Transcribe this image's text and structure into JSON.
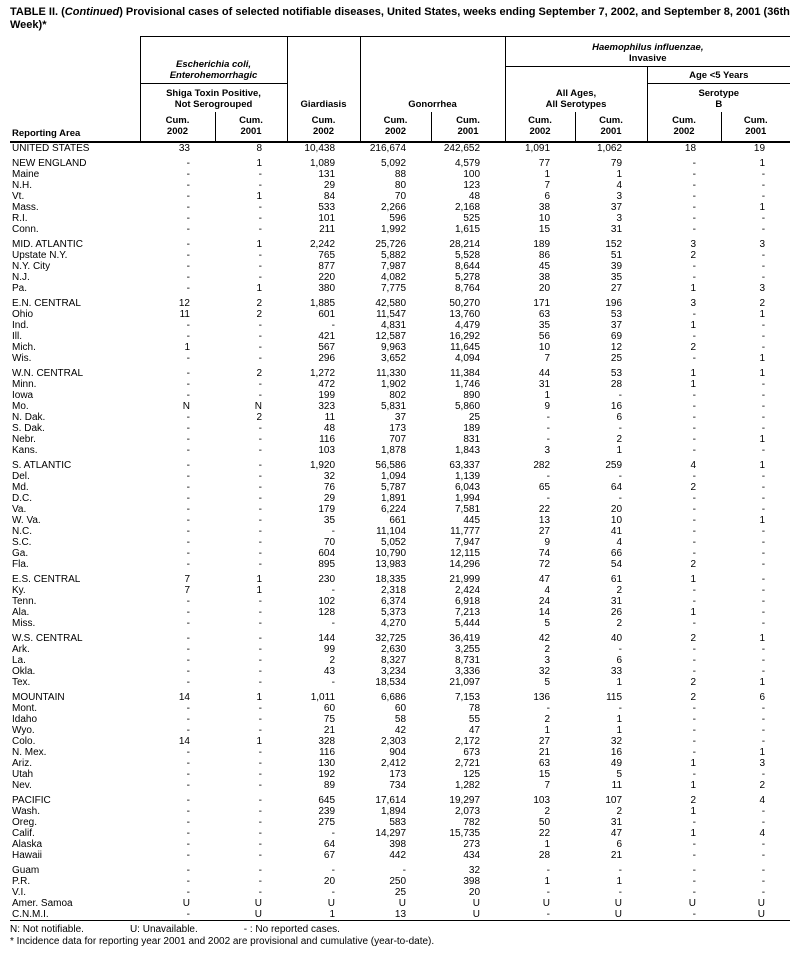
{
  "title": {
    "prefix": "TABLE II. (",
    "continued": "Continued",
    "suffix": ") Provisional cases of selected notifiable diseases, United States, weeks ending September 7, 2002, and September 8, 2001 (36th Week)*"
  },
  "header": {
    "reporting_area": "Reporting Area",
    "ecoli_line1": "Escherichia coli,",
    "ecoli_line2": "Enterohemorrhagic",
    "shiga_line1": "Shiga Toxin Positive,",
    "shiga_line2": "Not Serogrouped",
    "giardiasis": "Giardiasis",
    "gonorrhea": "Gonorrhea",
    "hib_line1": "Haemophilus influenzae,",
    "hib_line2": "Invasive",
    "all_ages_line1": "All Ages,",
    "all_ages_line2": "All Serotypes",
    "age5": "Age <5 Years",
    "serotype_line1": "Serotype",
    "serotype_line2": "B",
    "cum_label": "Cum.",
    "col_years": [
      "2002",
      "2001",
      "2002",
      "2002",
      "2001",
      "2002",
      "2001",
      "2002",
      "2001"
    ]
  },
  "groups": [
    {
      "rows": [
        {
          "area": "UNITED STATES",
          "values": [
            "33",
            "8",
            "10,438",
            "216,674",
            "242,652",
            "1,091",
            "1,062",
            "18",
            "19"
          ]
        }
      ]
    },
    {
      "rows": [
        {
          "area": "NEW ENGLAND",
          "values": [
            "-",
            "1",
            "1,089",
            "5,092",
            "4,579",
            "77",
            "79",
            "-",
            "1"
          ]
        },
        {
          "area": "Maine",
          "values": [
            "-",
            "-",
            "131",
            "88",
            "100",
            "1",
            "1",
            "-",
            "-"
          ]
        },
        {
          "area": "N.H.",
          "values": [
            "-",
            "-",
            "29",
            "80",
            "123",
            "7",
            "4",
            "-",
            "-"
          ]
        },
        {
          "area": "Vt.",
          "values": [
            "-",
            "1",
            "84",
            "70",
            "48",
            "6",
            "3",
            "-",
            "-"
          ]
        },
        {
          "area": "Mass.",
          "values": [
            "-",
            "-",
            "533",
            "2,266",
            "2,168",
            "38",
            "37",
            "-",
            "1"
          ]
        },
        {
          "area": "R.I.",
          "values": [
            "-",
            "-",
            "101",
            "596",
            "525",
            "10",
            "3",
            "-",
            "-"
          ]
        },
        {
          "area": "Conn.",
          "values": [
            "-",
            "-",
            "211",
            "1,992",
            "1,615",
            "15",
            "31",
            "-",
            "-"
          ]
        }
      ]
    },
    {
      "rows": [
        {
          "area": "MID. ATLANTIC",
          "values": [
            "-",
            "1",
            "2,242",
            "25,726",
            "28,214",
            "189",
            "152",
            "3",
            "3"
          ]
        },
        {
          "area": "Upstate N.Y.",
          "values": [
            "-",
            "-",
            "765",
            "5,882",
            "5,528",
            "86",
            "51",
            "2",
            "-"
          ]
        },
        {
          "area": "N.Y. City",
          "values": [
            "-",
            "-",
            "877",
            "7,987",
            "8,644",
            "45",
            "39",
            "-",
            "-"
          ]
        },
        {
          "area": "N.J.",
          "values": [
            "-",
            "-",
            "220",
            "4,082",
            "5,278",
            "38",
            "35",
            "-",
            "-"
          ]
        },
        {
          "area": "Pa.",
          "values": [
            "-",
            "1",
            "380",
            "7,775",
            "8,764",
            "20",
            "27",
            "1",
            "3"
          ]
        }
      ]
    },
    {
      "rows": [
        {
          "area": "E.N. CENTRAL",
          "values": [
            "12",
            "2",
            "1,885",
            "42,580",
            "50,270",
            "171",
            "196",
            "3",
            "2"
          ]
        },
        {
          "area": "Ohio",
          "values": [
            "11",
            "2",
            "601",
            "11,547",
            "13,760",
            "63",
            "53",
            "-",
            "1"
          ]
        },
        {
          "area": "Ind.",
          "values": [
            "-",
            "-",
            "-",
            "4,831",
            "4,479",
            "35",
            "37",
            "1",
            "-"
          ]
        },
        {
          "area": "Ill.",
          "values": [
            "-",
            "-",
            "421",
            "12,587",
            "16,292",
            "56",
            "69",
            "-",
            "-"
          ]
        },
        {
          "area": "Mich.",
          "values": [
            "1",
            "-",
            "567",
            "9,963",
            "11,645",
            "10",
            "12",
            "2",
            "-"
          ]
        },
        {
          "area": "Wis.",
          "values": [
            "-",
            "-",
            "296",
            "3,652",
            "4,094",
            "7",
            "25",
            "-",
            "1"
          ]
        }
      ]
    },
    {
      "rows": [
        {
          "area": "W.N. CENTRAL",
          "values": [
            "-",
            "2",
            "1,272",
            "11,330",
            "11,384",
            "44",
            "53",
            "1",
            "1"
          ]
        },
        {
          "area": "Minn.",
          "values": [
            "-",
            "-",
            "472",
            "1,902",
            "1,746",
            "31",
            "28",
            "1",
            "-"
          ]
        },
        {
          "area": "Iowa",
          "values": [
            "-",
            "-",
            "199",
            "802",
            "890",
            "1",
            "-",
            "-",
            "-"
          ]
        },
        {
          "area": "Mo.",
          "values": [
            "N",
            "N",
            "323",
            "5,831",
            "5,860",
            "9",
            "16",
            "-",
            "-"
          ]
        },
        {
          "area": "N. Dak.",
          "values": [
            "-",
            "2",
            "11",
            "37",
            "25",
            "-",
            "6",
            "-",
            "-"
          ]
        },
        {
          "area": "S. Dak.",
          "values": [
            "-",
            "-",
            "48",
            "173",
            "189",
            "-",
            "-",
            "-",
            "-"
          ]
        },
        {
          "area": "Nebr.",
          "values": [
            "-",
            "-",
            "116",
            "707",
            "831",
            "-",
            "2",
            "-",
            "1"
          ]
        },
        {
          "area": "Kans.",
          "values": [
            "-",
            "-",
            "103",
            "1,878",
            "1,843",
            "3",
            "1",
            "-",
            "-"
          ]
        }
      ]
    },
    {
      "rows": [
        {
          "area": "S. ATLANTIC",
          "values": [
            "-",
            "-",
            "1,920",
            "56,586",
            "63,337",
            "282",
            "259",
            "4",
            "1"
          ]
        },
        {
          "area": "Del.",
          "values": [
            "-",
            "-",
            "32",
            "1,094",
            "1,139",
            "-",
            "-",
            "-",
            "-"
          ]
        },
        {
          "area": "Md.",
          "values": [
            "-",
            "-",
            "76",
            "5,787",
            "6,043",
            "65",
            "64",
            "2",
            "-"
          ]
        },
        {
          "area": "D.C.",
          "values": [
            "-",
            "-",
            "29",
            "1,891",
            "1,994",
            "-",
            "-",
            "-",
            "-"
          ]
        },
        {
          "area": "Va.",
          "values": [
            "-",
            "-",
            "179",
            "6,224",
            "7,581",
            "22",
            "20",
            "-",
            "-"
          ]
        },
        {
          "area": "W. Va.",
          "values": [
            "-",
            "-",
            "35",
            "661",
            "445",
            "13",
            "10",
            "-",
            "1"
          ]
        },
        {
          "area": "N.C.",
          "values": [
            "-",
            "-",
            "-",
            "11,104",
            "11,777",
            "27",
            "41",
            "-",
            "-"
          ]
        },
        {
          "area": "S.C.",
          "values": [
            "-",
            "-",
            "70",
            "5,052",
            "7,947",
            "9",
            "4",
            "-",
            "-"
          ]
        },
        {
          "area": "Ga.",
          "values": [
            "-",
            "-",
            "604",
            "10,790",
            "12,115",
            "74",
            "66",
            "-",
            "-"
          ]
        },
        {
          "area": "Fla.",
          "values": [
            "-",
            "-",
            "895",
            "13,983",
            "14,296",
            "72",
            "54",
            "2",
            "-"
          ]
        }
      ]
    },
    {
      "rows": [
        {
          "area": "E.S. CENTRAL",
          "values": [
            "7",
            "1",
            "230",
            "18,335",
            "21,999",
            "47",
            "61",
            "1",
            "-"
          ]
        },
        {
          "area": "Ky.",
          "values": [
            "7",
            "1",
            "-",
            "2,318",
            "2,424",
            "4",
            "2",
            "-",
            "-"
          ]
        },
        {
          "area": "Tenn.",
          "values": [
            "-",
            "-",
            "102",
            "6,374",
            "6,918",
            "24",
            "31",
            "-",
            "-"
          ]
        },
        {
          "area": "Ala.",
          "values": [
            "-",
            "-",
            "128",
            "5,373",
            "7,213",
            "14",
            "26",
            "1",
            "-"
          ]
        },
        {
          "area": "Miss.",
          "values": [
            "-",
            "-",
            "-",
            "4,270",
            "5,444",
            "5",
            "2",
            "-",
            "-"
          ]
        }
      ]
    },
    {
      "rows": [
        {
          "area": "W.S. CENTRAL",
          "values": [
            "-",
            "-",
            "144",
            "32,725",
            "36,419",
            "42",
            "40",
            "2",
            "1"
          ]
        },
        {
          "area": "Ark.",
          "values": [
            "-",
            "-",
            "99",
            "2,630",
            "3,255",
            "2",
            "-",
            "-",
            "-"
          ]
        },
        {
          "area": "La.",
          "values": [
            "-",
            "-",
            "2",
            "8,327",
            "8,731",
            "3",
            "6",
            "-",
            "-"
          ]
        },
        {
          "area": "Okla.",
          "values": [
            "-",
            "-",
            "43",
            "3,234",
            "3,336",
            "32",
            "33",
            "-",
            "-"
          ]
        },
        {
          "area": "Tex.",
          "values": [
            "-",
            "-",
            "-",
            "18,534",
            "21,097",
            "5",
            "1",
            "2",
            "1"
          ]
        }
      ]
    },
    {
      "rows": [
        {
          "area": "MOUNTAIN",
          "values": [
            "14",
            "1",
            "1,011",
            "6,686",
            "7,153",
            "136",
            "115",
            "2",
            "6"
          ]
        },
        {
          "area": "Mont.",
          "values": [
            "-",
            "-",
            "60",
            "60",
            "78",
            "-",
            "-",
            "-",
            "-"
          ]
        },
        {
          "area": "Idaho",
          "values": [
            "-",
            "-",
            "75",
            "58",
            "55",
            "2",
            "1",
            "-",
            "-"
          ]
        },
        {
          "area": "Wyo.",
          "values": [
            "-",
            "-",
            "21",
            "42",
            "47",
            "1",
            "1",
            "-",
            "-"
          ]
        },
        {
          "area": "Colo.",
          "values": [
            "14",
            "1",
            "328",
            "2,303",
            "2,172",
            "27",
            "32",
            "-",
            "-"
          ]
        },
        {
          "area": "N. Mex.",
          "values": [
            "-",
            "-",
            "116",
            "904",
            "673",
            "21",
            "16",
            "-",
            "1"
          ]
        },
        {
          "area": "Ariz.",
          "values": [
            "-",
            "-",
            "130",
            "2,412",
            "2,721",
            "63",
            "49",
            "1",
            "3"
          ]
        },
        {
          "area": "Utah",
          "values": [
            "-",
            "-",
            "192",
            "173",
            "125",
            "15",
            "5",
            "-",
            "-"
          ]
        },
        {
          "area": "Nev.",
          "values": [
            "-",
            "-",
            "89",
            "734",
            "1,282",
            "7",
            "11",
            "1",
            "2"
          ]
        }
      ]
    },
    {
      "rows": [
        {
          "area": "PACIFIC",
          "values": [
            "-",
            "-",
            "645",
            "17,614",
            "19,297",
            "103",
            "107",
            "2",
            "4"
          ]
        },
        {
          "area": "Wash.",
          "values": [
            "-",
            "-",
            "239",
            "1,894",
            "2,073",
            "2",
            "2",
            "1",
            "-"
          ]
        },
        {
          "area": "Oreg.",
          "values": [
            "-",
            "-",
            "275",
            "583",
            "782",
            "50",
            "31",
            "-",
            "-"
          ]
        },
        {
          "area": "Calif.",
          "values": [
            "-",
            "-",
            "-",
            "14,297",
            "15,735",
            "22",
            "47",
            "1",
            "4"
          ]
        },
        {
          "area": "Alaska",
          "values": [
            "-",
            "-",
            "64",
            "398",
            "273",
            "1",
            "6",
            "-",
            "-"
          ]
        },
        {
          "area": "Hawaii",
          "values": [
            "-",
            "-",
            "67",
            "442",
            "434",
            "28",
            "21",
            "-",
            "-"
          ]
        }
      ]
    },
    {
      "rows": [
        {
          "area": "Guam",
          "values": [
            "-",
            "-",
            "-",
            "-",
            "32",
            "-",
            "-",
            "-",
            "-"
          ]
        },
        {
          "area": "P.R.",
          "values": [
            "-",
            "-",
            "20",
            "250",
            "398",
            "1",
            "1",
            "-",
            "-"
          ]
        },
        {
          "area": "V.I.",
          "values": [
            "-",
            "-",
            "-",
            "25",
            "20",
            "-",
            "-",
            "-",
            "-"
          ]
        },
        {
          "area": "Amer. Samoa",
          "values": [
            "U",
            "U",
            "U",
            "U",
            "U",
            "U",
            "U",
            "U",
            "U"
          ]
        },
        {
          "area": "C.N.M.I.",
          "values": [
            "-",
            "U",
            "1",
            "13",
            "U",
            "-",
            "U",
            "-",
            "U"
          ]
        }
      ]
    }
  ],
  "footnotes": {
    "legend_n": "N: Not notifiable.",
    "legend_u": "U: Unavailable.",
    "legend_dash": "- : No reported cases.",
    "note": "* Incidence data for reporting year 2001 and 2002 are provisional and cumulative (year-to-date)."
  }
}
